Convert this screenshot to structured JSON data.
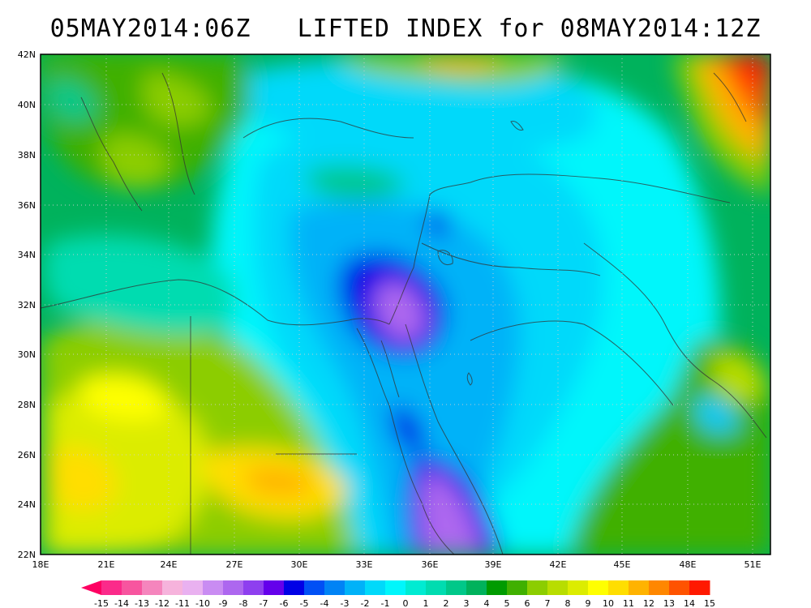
{
  "title": "05MAY2014:06Z   LIFTED INDEX for 08MAY2014:12Z",
  "map": {
    "lat_labels": [
      "42N",
      "40N",
      "38N",
      "36N",
      "34N",
      "32N",
      "30N",
      "28N",
      "26N",
      "24N",
      "22N"
    ],
    "lon_labels": [
      "18E",
      "21E",
      "24E",
      "27E",
      "30E",
      "33E",
      "36E",
      "39E",
      "42E",
      "45E",
      "48E",
      "51E"
    ]
  },
  "colorbar": {
    "labels": [
      "-15",
      "-14",
      "-13",
      "-12",
      "-11",
      "-10",
      "-9",
      "-8",
      "-7",
      "-6",
      "-5",
      "-4",
      "-3",
      "-2",
      "-1",
      "0",
      "1",
      "2",
      "3",
      "4",
      "5",
      "6",
      "7",
      "8",
      "9",
      "10",
      "11",
      "12",
      "13",
      "14",
      "15"
    ],
    "colors": [
      "#fe0062",
      "#fb2a8a",
      "#f7559f",
      "#f585bd",
      "#f6b3dc",
      "#e9b1f0",
      "#c98cf2",
      "#ad67ef",
      "#8e3fef",
      "#6400eb",
      "#0000e6",
      "#0050f5",
      "#0083f5",
      "#00b2f8",
      "#00d9fa",
      "#00f6fb",
      "#00ebd2",
      "#00dcb0",
      "#00c889",
      "#00b25c",
      "#009b00",
      "#40b000",
      "#8ccd00",
      "#b8dd00",
      "#dcec00",
      "#ffff00",
      "#ffde00",
      "#ffb300",
      "#ff8700",
      "#ff5300",
      "#ff1900"
    ]
  }
}
